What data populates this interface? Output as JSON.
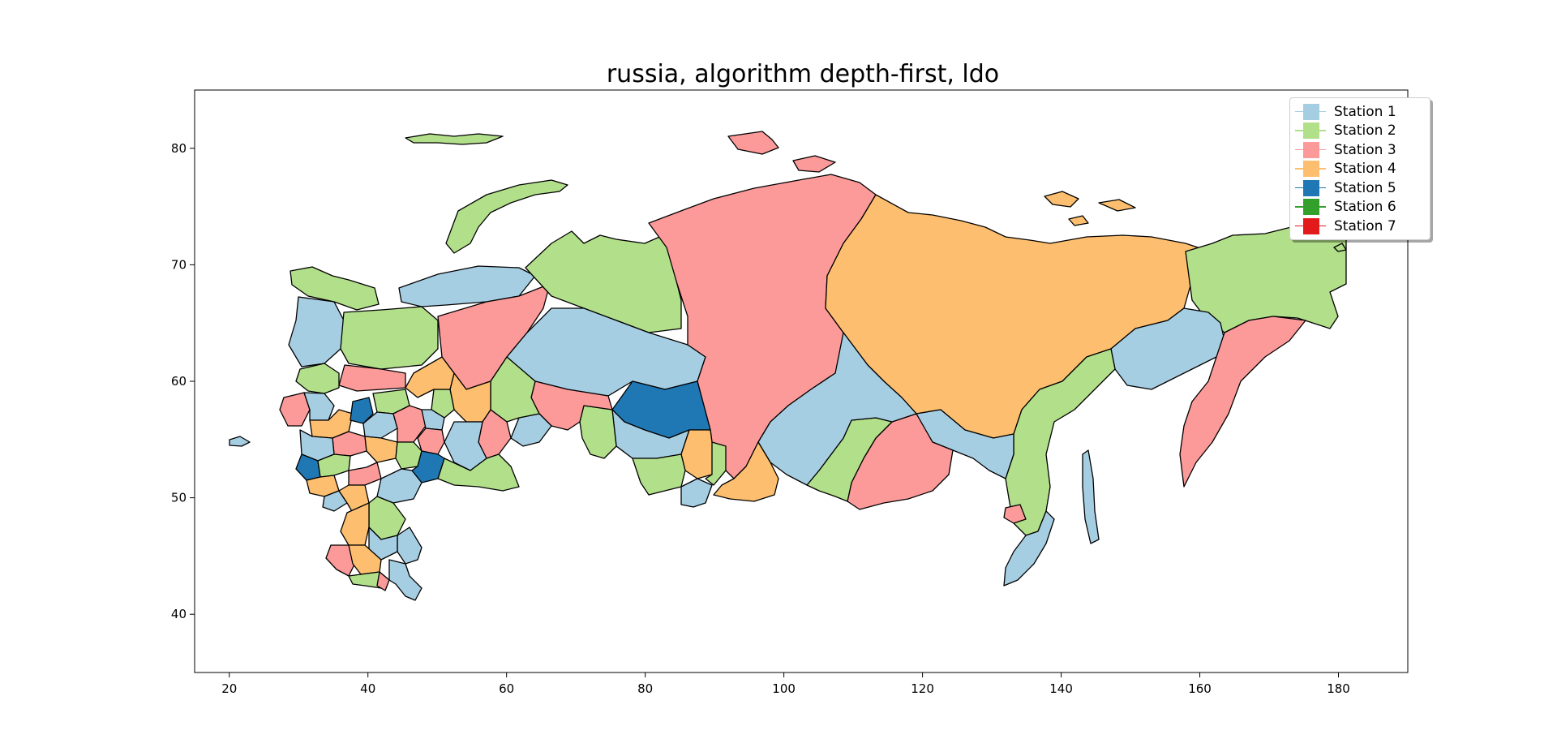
{
  "title": "russia, algorithm depth-first, ldo",
  "x_axis": {
    "ticks": [
      "20",
      "40",
      "60",
      "80",
      "100",
      "120",
      "140",
      "160",
      "180"
    ]
  },
  "y_axis": {
    "ticks": [
      "40",
      "50",
      "60",
      "70",
      "80"
    ]
  },
  "legend": {
    "placement": "top-right",
    "entries": [
      {
        "label": "Station 1",
        "color": "#a6cee3"
      },
      {
        "label": "Station 2",
        "color": "#b2df8a"
      },
      {
        "label": "Station 3",
        "color": "#fb9a99"
      },
      {
        "label": "Station 4",
        "color": "#fdbf6f"
      },
      {
        "label": "Station 5",
        "color": "#1f78b4"
      },
      {
        "label": "Station 6",
        "color": "#33a02c"
      },
      {
        "label": "Station 7",
        "color": "#e31a1c"
      }
    ]
  },
  "map": {
    "country": "russia",
    "extent": {
      "lon": [
        15,
        190
      ],
      "lat": [
        35,
        85
      ]
    },
    "outline_color": "#000000",
    "region_colors": {
      "s1": "#a6cee3",
      "s2": "#b2df8a",
      "s3": "#fb9a99",
      "s4": "#fdbf6f",
      "s5": "#1f78b4"
    }
  }
}
